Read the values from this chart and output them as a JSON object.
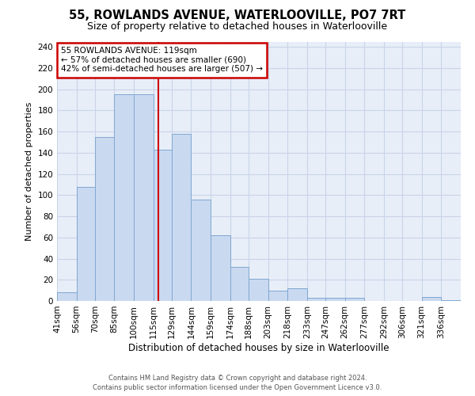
{
  "title": "55, ROWLANDS AVENUE, WATERLOOVILLE, PO7 7RT",
  "subtitle": "Size of property relative to detached houses in Waterlooville",
  "xlabel": "Distribution of detached houses by size in Waterlooville",
  "ylabel": "Number of detached properties",
  "footer_line1": "Contains HM Land Registry data © Crown copyright and database right 2024.",
  "footer_line2": "Contains public sector information licensed under the Open Government Licence v3.0.",
  "bar_labels": [
    "41sqm",
    "56sqm",
    "70sqm",
    "85sqm",
    "100sqm",
    "115sqm",
    "129sqm",
    "144sqm",
    "159sqm",
    "174sqm",
    "188sqm",
    "203sqm",
    "218sqm",
    "233sqm",
    "247sqm",
    "262sqm",
    "277sqm",
    "292sqm",
    "306sqm",
    "321sqm",
    "336sqm"
  ],
  "bin_edges": [
    41,
    56,
    70,
    85,
    100,
    115,
    129,
    144,
    159,
    174,
    188,
    203,
    218,
    233,
    247,
    262,
    277,
    292,
    306,
    321,
    336,
    351
  ],
  "bar_values": [
    8,
    108,
    155,
    195,
    195,
    143,
    158,
    96,
    62,
    32,
    21,
    10,
    12,
    3,
    3,
    3,
    0,
    0,
    0,
    4,
    1
  ],
  "bar_color_face": "#c9d9f0",
  "bar_color_edge": "#7fa8d0",
  "property_line_x": 119,
  "property_line_color": "#cc0000",
  "annotation_line1": "55 ROWLANDS AVENUE: 119sqm",
  "annotation_line2": "← 57% of detached houses are smaller (690)",
  "annotation_line3": "42% of semi-detached houses are larger (507) →",
  "annotation_box_edgecolor": "#cc0000",
  "ylim_max": 245,
  "yticks": [
    0,
    20,
    40,
    60,
    80,
    100,
    120,
    140,
    160,
    180,
    200,
    220,
    240
  ],
  "grid_color": "#c8d4e8",
  "bg_color": "#e8eef8",
  "title_fontsize": 10.5,
  "subtitle_fontsize": 9,
  "xlabel_fontsize": 8.5,
  "ylabel_fontsize": 8,
  "tick_fontsize": 7.5,
  "annotation_fontsize": 7.5
}
